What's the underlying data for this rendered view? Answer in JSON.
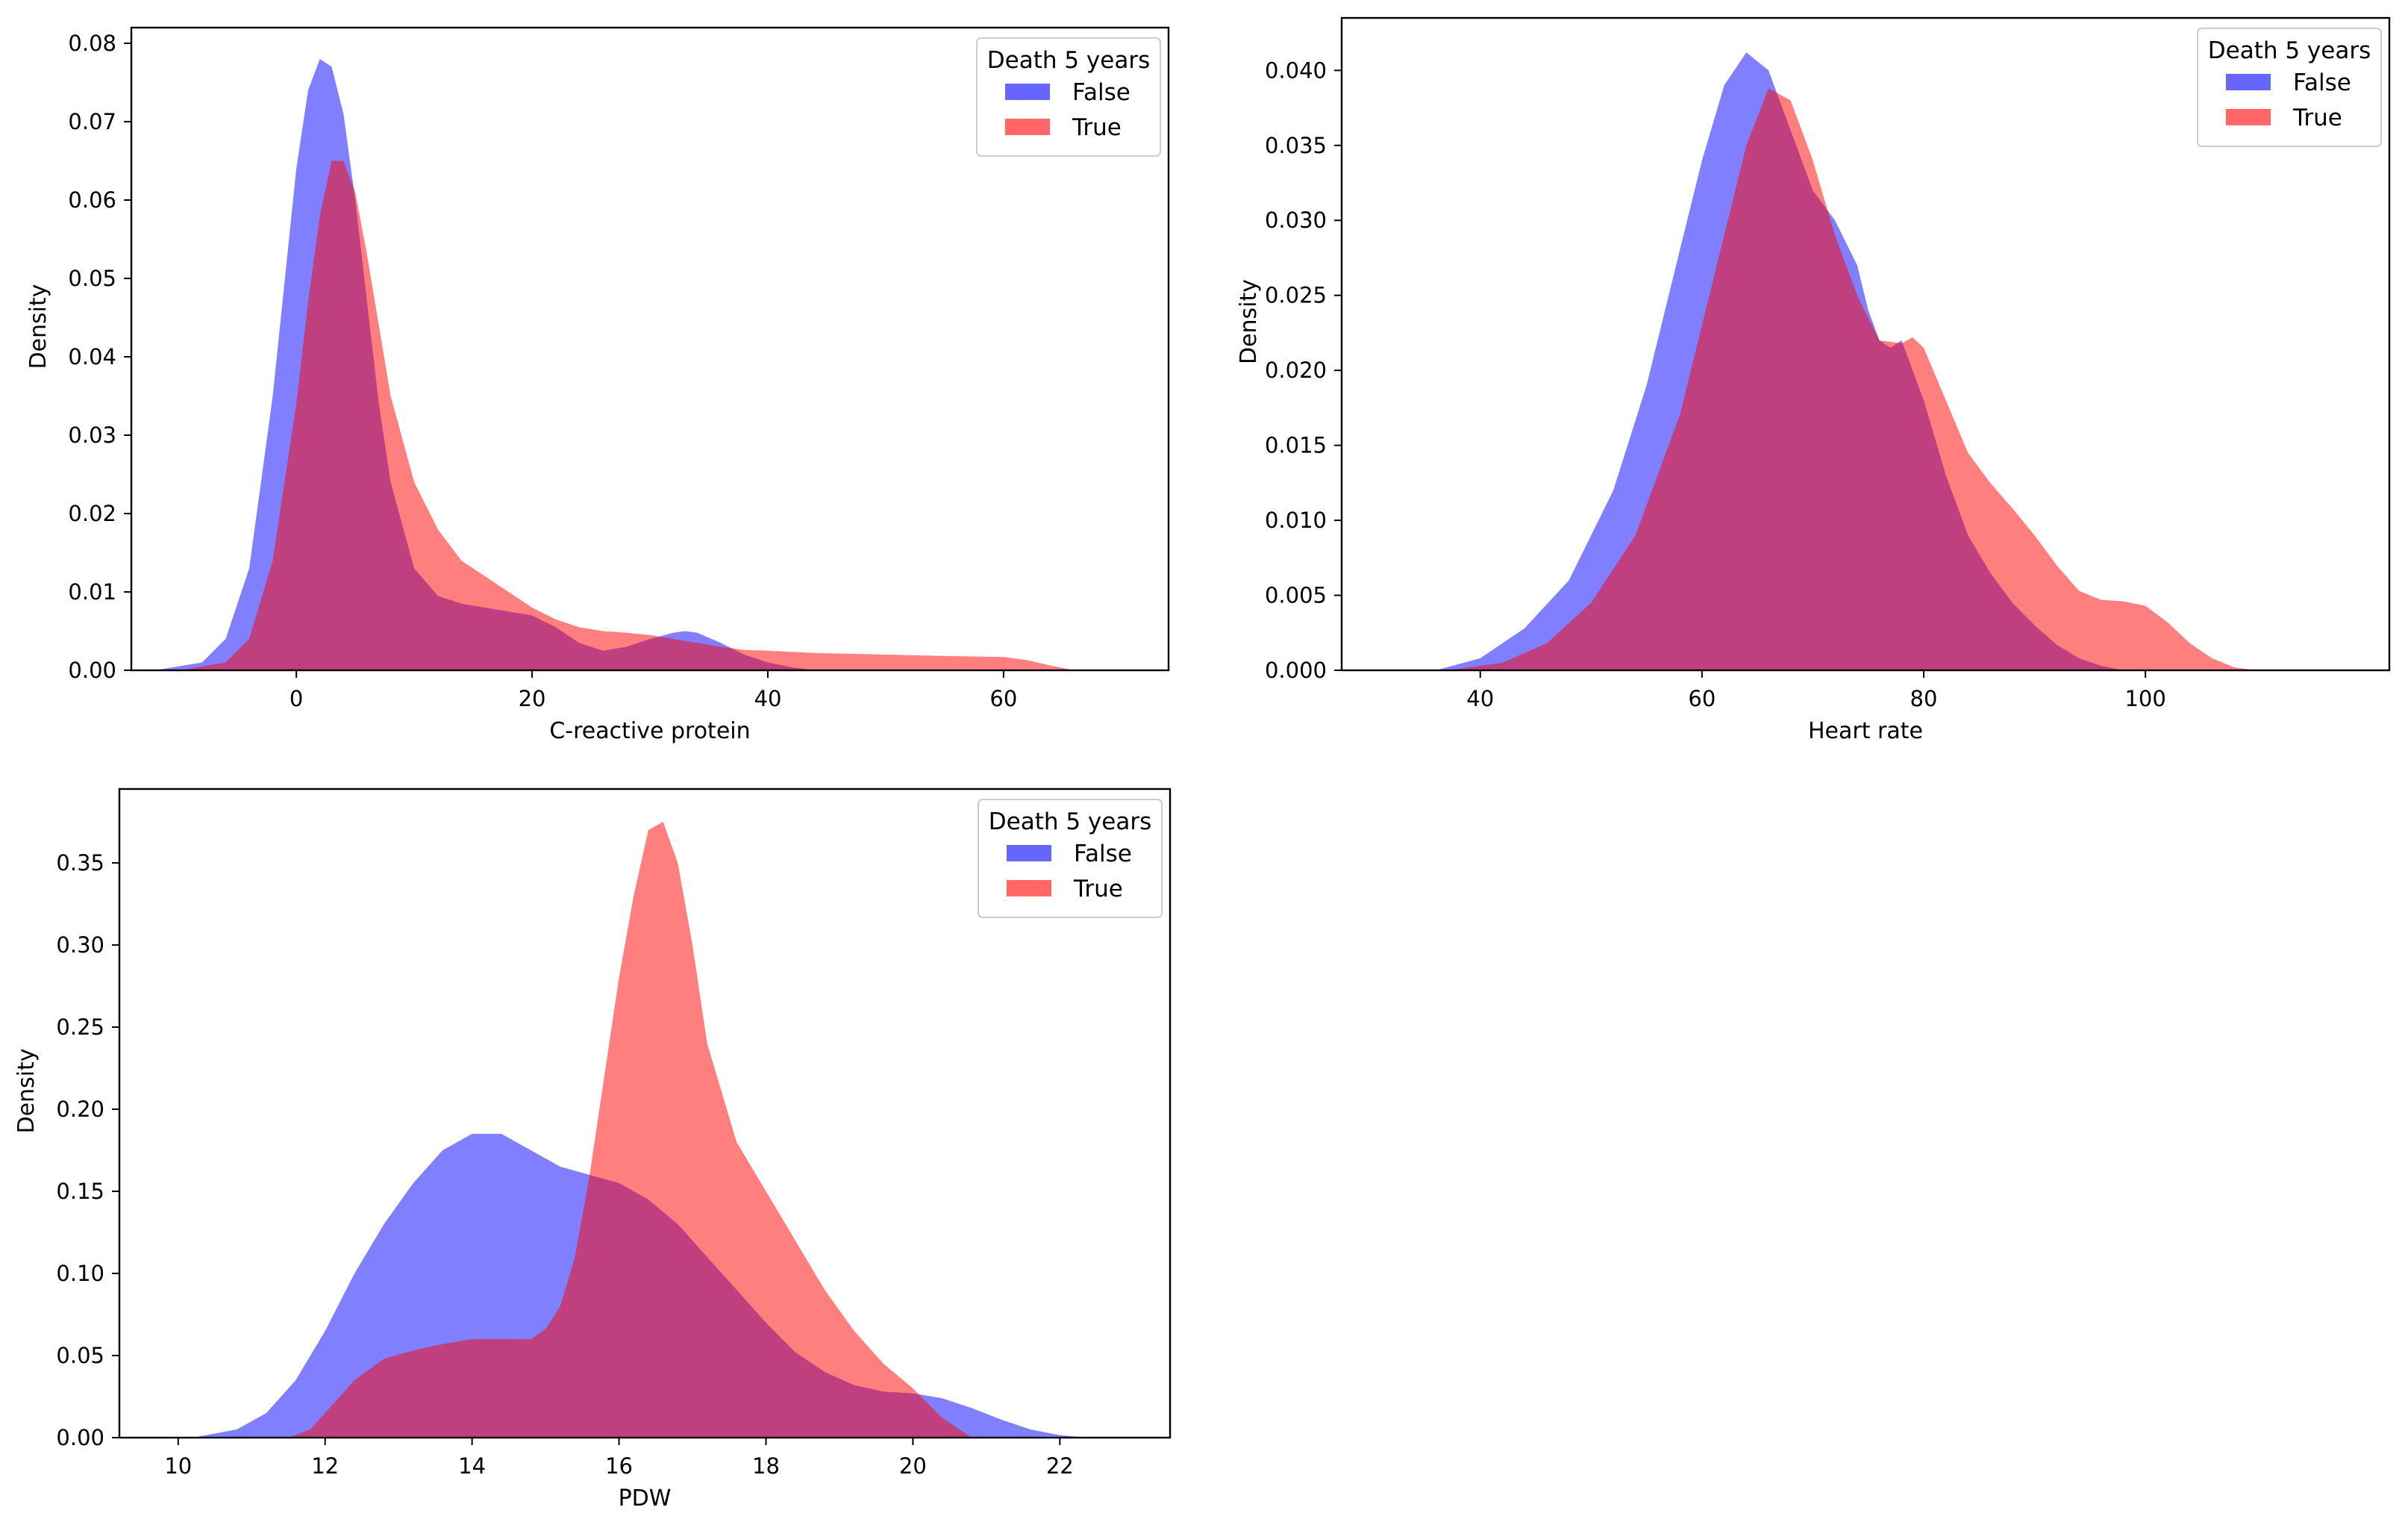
{
  "colors": {
    "false_series": "#6666ff",
    "true_series": "#ff6666",
    "overlap": "#8c3fbf"
  },
  "chart_data": [
    {
      "type": "area",
      "subtype": "kde-density",
      "title": "",
      "xlabel": "C-reactive protein",
      "ylabel": "Density",
      "xlim": [
        -14,
        74
      ],
      "ylim": [
        0,
        0.082
      ],
      "xticks": [
        0,
        20,
        40,
        60
      ],
      "yticks": [
        0.0,
        0.01,
        0.02,
        0.03,
        0.04,
        0.05,
        0.06,
        0.07,
        0.08
      ],
      "ytick_labels": [
        "0.00",
        "0.01",
        "0.02",
        "0.03",
        "0.04",
        "0.05",
        "0.06",
        "0.07",
        "0.08"
      ],
      "grid": false,
      "legend": {
        "title": "Death 5 years",
        "position": "top-right",
        "entries": [
          "False",
          "True"
        ]
      },
      "series": [
        {
          "name": "False",
          "x": [
            -12,
            -8,
            -6,
            -4,
            -2,
            0,
            1,
            2,
            3,
            4,
            5,
            6,
            7,
            8,
            10,
            12,
            14,
            16,
            18,
            20,
            22,
            24,
            26,
            28,
            30,
            32,
            33,
            34,
            36,
            38,
            40,
            42,
            44
          ],
          "y": [
            0,
            0.001,
            0.004,
            0.013,
            0.035,
            0.064,
            0.074,
            0.078,
            0.077,
            0.071,
            0.06,
            0.047,
            0.034,
            0.024,
            0.013,
            0.0095,
            0.0085,
            0.008,
            0.0075,
            0.007,
            0.0055,
            0.0035,
            0.0025,
            0.003,
            0.004,
            0.0048,
            0.005,
            0.0048,
            0.0035,
            0.002,
            0.001,
            0.0004,
            0
          ]
        },
        {
          "name": "True",
          "x": [
            -10,
            -6,
            -4,
            -2,
            0,
            1,
            2,
            3,
            4,
            5,
            6,
            7,
            8,
            10,
            12,
            14,
            16,
            18,
            20,
            22,
            24,
            26,
            28,
            30,
            32,
            34,
            36,
            38,
            40,
            44,
            50,
            56,
            60,
            62,
            64,
            66
          ],
          "y": [
            0,
            0.001,
            0.004,
            0.014,
            0.034,
            0.047,
            0.058,
            0.065,
            0.065,
            0.061,
            0.053,
            0.044,
            0.035,
            0.024,
            0.018,
            0.014,
            0.012,
            0.01,
            0.008,
            0.0065,
            0.0055,
            0.005,
            0.0048,
            0.0045,
            0.004,
            0.0035,
            0.003,
            0.0026,
            0.0025,
            0.0022,
            0.002,
            0.0018,
            0.0017,
            0.0013,
            0.0006,
            0
          ]
        }
      ]
    },
    {
      "type": "area",
      "subtype": "kde-density",
      "title": "",
      "xlabel": "Heart rate",
      "ylabel": "Density",
      "xlim": [
        27.5,
        122
      ],
      "ylim": [
        0,
        0.0435
      ],
      "xticks": [
        40,
        60,
        80,
        100
      ],
      "yticks": [
        0.0,
        0.005,
        0.01,
        0.015,
        0.02,
        0.025,
        0.03,
        0.035,
        0.04
      ],
      "ytick_labels": [
        "0.000",
        "0.005",
        "0.010",
        "0.015",
        "0.020",
        "0.025",
        "0.030",
        "0.035",
        "0.040"
      ],
      "grid": false,
      "legend": {
        "title": "Death 5 years",
        "position": "top-right",
        "entries": [
          "False",
          "True"
        ]
      },
      "series": [
        {
          "name": "False",
          "x": [
            36,
            40,
            44,
            48,
            52,
            55,
            58,
            60,
            62,
            64,
            66,
            68,
            70,
            72,
            74,
            75,
            76,
            77,
            78,
            80,
            82,
            84,
            86,
            88,
            90,
            92,
            94,
            96,
            98
          ],
          "y": [
            0,
            0.0008,
            0.0028,
            0.006,
            0.012,
            0.019,
            0.028,
            0.034,
            0.039,
            0.0412,
            0.04,
            0.036,
            0.032,
            0.03,
            0.027,
            0.024,
            0.022,
            0.0215,
            0.022,
            0.018,
            0.013,
            0.009,
            0.0065,
            0.0045,
            0.003,
            0.0017,
            0.0008,
            0.0003,
            0
          ]
        },
        {
          "name": "True",
          "x": [
            37,
            42,
            46,
            50,
            54,
            58,
            61,
            64,
            66,
            68,
            70,
            72,
            74,
            76,
            78,
            79,
            80,
            82,
            84,
            86,
            88,
            90,
            92,
            94,
            96,
            98,
            100,
            102,
            104,
            106,
            108,
            110
          ],
          "y": [
            0,
            0.0005,
            0.0018,
            0.0045,
            0.009,
            0.017,
            0.026,
            0.035,
            0.0388,
            0.038,
            0.034,
            0.029,
            0.025,
            0.022,
            0.0218,
            0.0222,
            0.0215,
            0.018,
            0.0145,
            0.0125,
            0.0108,
            0.009,
            0.007,
            0.0053,
            0.0047,
            0.0046,
            0.0043,
            0.0032,
            0.0018,
            0.0008,
            0.0002,
            0
          ]
        }
      ]
    },
    {
      "type": "area",
      "subtype": "kde-density",
      "title": "",
      "xlabel": "PDW",
      "ylabel": "Density",
      "xlim": [
        9.2,
        23.5
      ],
      "ylim": [
        0,
        0.395
      ],
      "xticks": [
        10,
        12,
        14,
        16,
        18,
        20,
        22
      ],
      "yticks": [
        0.0,
        0.05,
        0.1,
        0.15,
        0.2,
        0.25,
        0.3,
        0.35
      ],
      "ytick_labels": [
        "0.00",
        "0.05",
        "0.10",
        "0.15",
        "0.20",
        "0.25",
        "0.30",
        "0.35"
      ],
      "grid": false,
      "legend": {
        "title": "Death 5 years",
        "position": "top-right",
        "entries": [
          "False",
          "True"
        ]
      },
      "series": [
        {
          "name": "False",
          "x": [
            10.2,
            10.8,
            11.2,
            11.6,
            12,
            12.4,
            12.8,
            13.2,
            13.6,
            14,
            14.4,
            14.8,
            15.2,
            15.6,
            16,
            16.4,
            16.8,
            17.2,
            17.6,
            18,
            18.4,
            18.8,
            19.2,
            19.6,
            20,
            20.4,
            20.8,
            21.2,
            21.6,
            22,
            22.4
          ],
          "y": [
            0,
            0.005,
            0.015,
            0.035,
            0.065,
            0.1,
            0.13,
            0.155,
            0.175,
            0.185,
            0.185,
            0.175,
            0.165,
            0.16,
            0.155,
            0.145,
            0.13,
            0.11,
            0.09,
            0.07,
            0.052,
            0.04,
            0.032,
            0.028,
            0.027,
            0.024,
            0.018,
            0.011,
            0.005,
            0.0015,
            0
          ]
        },
        {
          "name": "True",
          "x": [
            11.5,
            11.8,
            12,
            12.4,
            12.8,
            13.2,
            13.6,
            14,
            14.4,
            14.8,
            15,
            15.2,
            15.4,
            15.6,
            15.8,
            16,
            16.2,
            16.4,
            16.6,
            16.8,
            17,
            17.2,
            17.6,
            18,
            18.4,
            18.8,
            19.2,
            19.6,
            20,
            20.4,
            20.8
          ],
          "y": [
            0,
            0.005,
            0.015,
            0.035,
            0.048,
            0.053,
            0.057,
            0.06,
            0.06,
            0.06,
            0.066,
            0.08,
            0.11,
            0.16,
            0.22,
            0.28,
            0.33,
            0.37,
            0.375,
            0.35,
            0.3,
            0.24,
            0.18,
            0.15,
            0.12,
            0.09,
            0.065,
            0.045,
            0.03,
            0.012,
            0
          ]
        }
      ]
    }
  ]
}
